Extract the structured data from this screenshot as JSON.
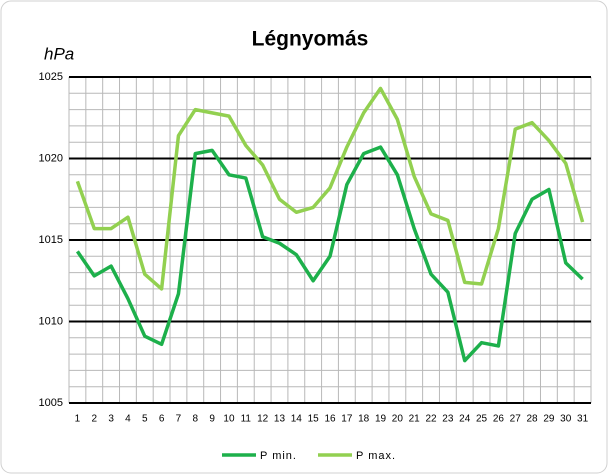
{
  "chart_data": {
    "type": "line",
    "title": "Légnyomás",
    "y_label": "hPa",
    "categories": [
      "1",
      "2",
      "3",
      "4",
      "5",
      "6",
      "7",
      "8",
      "9",
      "10",
      "11",
      "12",
      "13",
      "14",
      "15",
      "16",
      "17",
      "18",
      "19",
      "20",
      "21",
      "22",
      "23",
      "24",
      "25",
      "26",
      "27",
      "28",
      "29",
      "30",
      "31"
    ],
    "series": [
      {
        "name": "P min.",
        "color": "#1db04b",
        "values": [
          1014.3,
          1012.8,
          1013.4,
          1011.4,
          1009.1,
          1008.6,
          1011.7,
          1020.3,
          1020.5,
          1019.0,
          1018.8,
          1015.2,
          1014.8,
          1014.1,
          1012.5,
          1014.0,
          1018.4,
          1020.3,
          1020.7,
          1019.0,
          1015.7,
          1012.9,
          1011.8,
          1007.6,
          1008.7,
          1008.5,
          1015.4,
          1017.5,
          1018.1,
          1013.6,
          1012.6
        ]
      },
      {
        "name": "P max.",
        "color": "#92d050",
        "values": [
          1018.6,
          1015.7,
          1015.7,
          1016.4,
          1012.9,
          1012.0,
          1021.4,
          1023.0,
          1022.8,
          1022.6,
          1020.8,
          1019.6,
          1017.5,
          1016.7,
          1017.0,
          1018.2,
          1020.7,
          1022.8,
          1024.3,
          1022.4,
          1018.9,
          1016.6,
          1016.2,
          1012.4,
          1012.3,
          1015.7,
          1021.8,
          1022.2,
          1021.1,
          1019.7,
          1016.1
        ]
      }
    ],
    "ylim": [
      1005,
      1025
    ],
    "yticks": [
      1005,
      1010,
      1015,
      1020,
      1025
    ],
    "grid": true,
    "legend": "bottom"
  }
}
